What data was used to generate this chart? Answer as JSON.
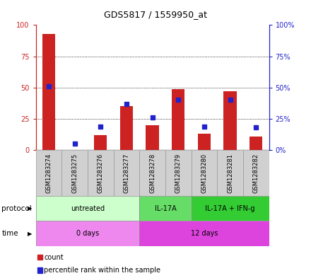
{
  "title": "GDS5817 / 1559950_at",
  "samples": [
    "GSM1283274",
    "GSM1283275",
    "GSM1283276",
    "GSM1283277",
    "GSM1283278",
    "GSM1283279",
    "GSM1283280",
    "GSM1283281",
    "GSM1283282"
  ],
  "count_values": [
    93,
    0,
    12,
    35,
    20,
    49,
    13,
    47,
    11
  ],
  "percentile_values": [
    51,
    5,
    19,
    37,
    26,
    40,
    19,
    40,
    18
  ],
  "bar_color": "#cc2222",
  "dot_color": "#2222cc",
  "ylim": [
    0,
    100
  ],
  "yticks": [
    0,
    25,
    50,
    75,
    100
  ],
  "grid_color": "black",
  "protocol_groups": [
    {
      "label": "untreated",
      "start": 0,
      "end": 4,
      "color": "#ccffcc"
    },
    {
      "label": "IL-17A",
      "start": 4,
      "end": 6,
      "color": "#66dd66"
    },
    {
      "label": "IL-17A + IFN-g",
      "start": 6,
      "end": 9,
      "color": "#33cc33"
    }
  ],
  "time_groups": [
    {
      "label": "0 days",
      "start": 0,
      "end": 4,
      "color": "#ee88ee"
    },
    {
      "label": "12 days",
      "start": 4,
      "end": 9,
      "color": "#dd44dd"
    }
  ],
  "legend_count_label": "count",
  "legend_percentile_label": "percentile rank within the sample",
  "protocol_label": "protocol",
  "time_label": "time",
  "left_axis_color": "#cc2222",
  "right_axis_color": "#2222cc",
  "sample_box_color": "#d0d0d0",
  "bg_color": "#ffffff"
}
